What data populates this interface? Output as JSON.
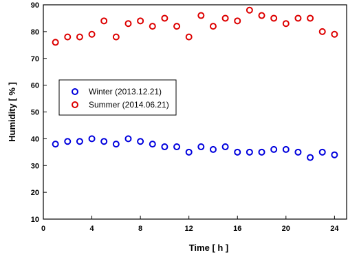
{
  "chart_data": {
    "type": "scatter",
    "xlabel": "Time [ h ]",
    "ylabel": "Humidity [ % ]",
    "xlim": [
      0,
      25
    ],
    "ylim": [
      10,
      90
    ],
    "xticks": [
      0,
      4,
      8,
      12,
      16,
      20,
      24
    ],
    "yticks": [
      10,
      20,
      30,
      40,
      50,
      60,
      70,
      80,
      90
    ],
    "grid": false,
    "legend_position": "left-middle",
    "series": [
      {
        "name": "Winter (2013.12.21)",
        "color": "#0000dd",
        "marker": "open-circle",
        "x": [
          1,
          2,
          3,
          4,
          5,
          6,
          7,
          8,
          9,
          10,
          11,
          12,
          13,
          14,
          15,
          16,
          17,
          18,
          19,
          20,
          21,
          22,
          23,
          24
        ],
        "y": [
          38,
          39,
          39,
          40,
          39,
          38,
          40,
          39,
          38,
          37,
          37,
          35,
          37,
          36,
          37,
          35,
          35,
          35,
          36,
          36,
          35,
          33,
          35,
          34
        ]
      },
      {
        "name": "Summer (2014.06.21)",
        "color": "#dd0000",
        "marker": "open-circle",
        "x": [
          1,
          2,
          3,
          4,
          5,
          6,
          7,
          8,
          9,
          10,
          11,
          12,
          13,
          14,
          15,
          16,
          17,
          18,
          19,
          20,
          21,
          22,
          23,
          24
        ],
        "y": [
          76,
          78,
          78,
          79,
          84,
          78,
          83,
          84,
          82,
          85,
          82,
          78,
          86,
          82,
          85,
          84,
          88,
          86,
          85,
          83,
          85,
          85,
          80,
          79
        ]
      }
    ]
  }
}
